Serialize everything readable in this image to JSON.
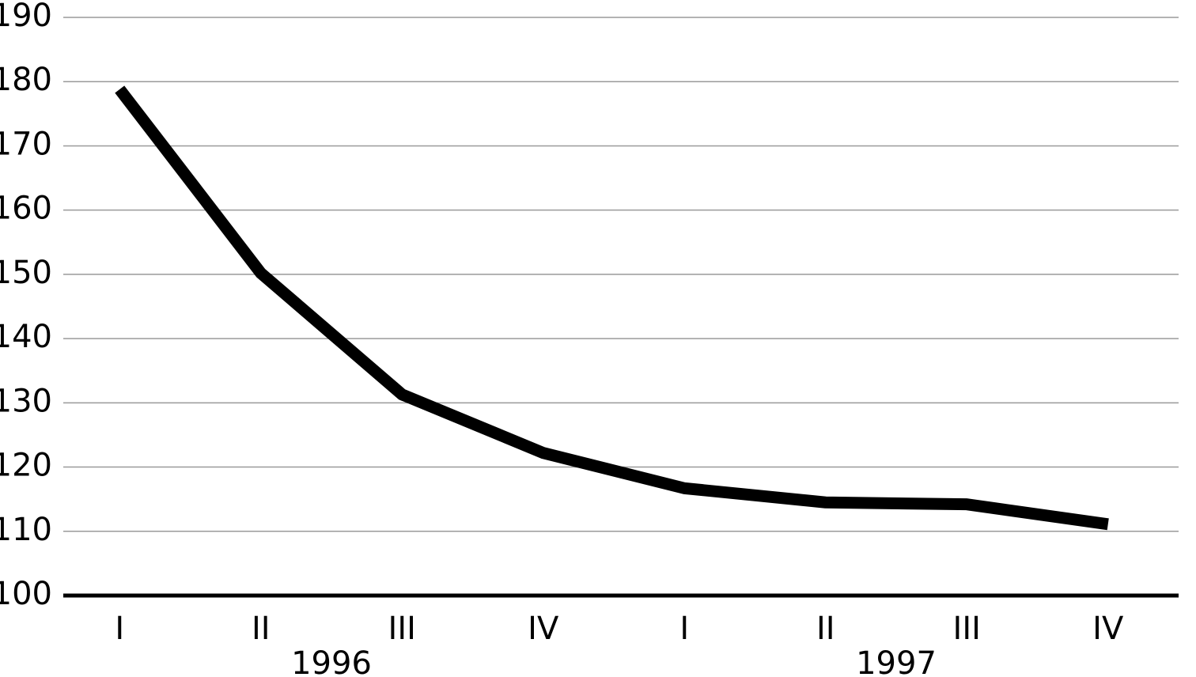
{
  "chart_data": {
    "type": "line",
    "categories": [
      "I",
      "II",
      "III",
      "IV",
      "I",
      "II",
      "III",
      "IV"
    ],
    "x_groups": [
      "1996",
      "1997"
    ],
    "values": [
      178.8,
      150.2,
      131.3,
      122.2,
      116.7,
      114.5,
      114.2,
      111.1
    ],
    "color": "#000000",
    "ylim": [
      100,
      190
    ],
    "yticks": [
      100,
      110,
      120,
      130,
      140,
      150,
      160,
      170,
      180,
      190
    ],
    "grid": true
  }
}
